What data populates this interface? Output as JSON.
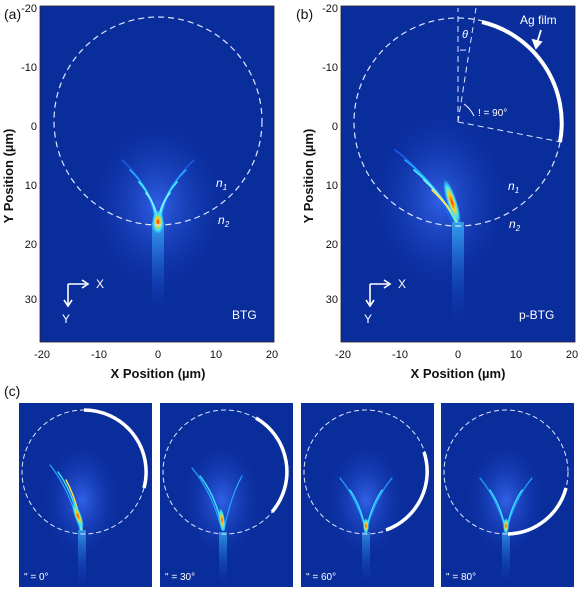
{
  "figure": {
    "panel_a": {
      "tag": "(a)",
      "xlabel": "X Position (µm)",
      "ylabel": "Y Position (µm)",
      "x_ticks": [
        "-20",
        "-10",
        "0",
        "10",
        "20"
      ],
      "y_ticks": [
        "-20",
        "-10",
        "0",
        "10",
        "20",
        "30"
      ],
      "n1": "n",
      "n1_sub": "1",
      "n2": "n",
      "n2_sub": "2",
      "axis_x": "X",
      "axis_y": "Y",
      "name": "BTG"
    },
    "panel_b": {
      "tag": "(b)",
      "xlabel": "X Position (µm)",
      "ylabel": "Y Position (µm)",
      "x_ticks": [
        "-20",
        "-10",
        "0",
        "10",
        "20"
      ],
      "y_ticks": [
        "-20",
        "-10",
        "0",
        "10",
        "20",
        "30"
      ],
      "n1": "n",
      "n1_sub": "1",
      "n2": "n",
      "n2_sub": "2",
      "axis_x": "X",
      "axis_y": "Y",
      "name": "p-BTG",
      "film_label": "Ag film",
      "theta_label": "θ",
      "angle_label": "! = 90°"
    },
    "panel_c": {
      "tag": "(c)",
      "subpanels": [
        {
          "angle": "\" = 0°"
        },
        {
          "angle": "\" = 30°"
        },
        {
          "angle": "\" = 60°"
        },
        {
          "angle": "\" = 80°"
        }
      ]
    }
  },
  "colors": {
    "field_background": "#0a2d9c",
    "field_glow": "#2e5fe0",
    "hot": "#ff3a10",
    "warm": "#ffe640",
    "cyan": "#35e0ff",
    "dashed": "#dfe6ff",
    "film": "#ffffff"
  }
}
